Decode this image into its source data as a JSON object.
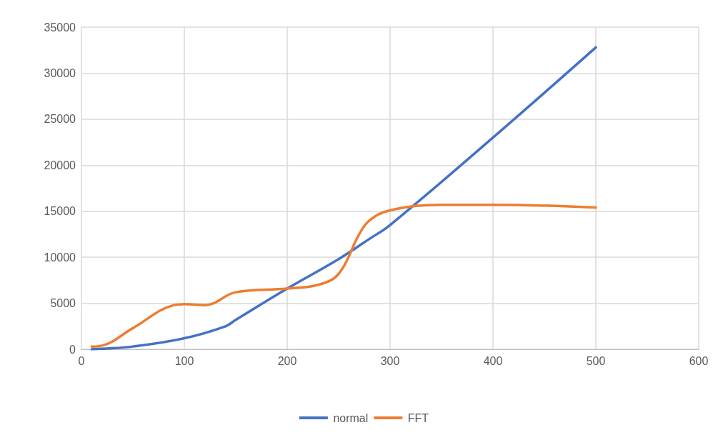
{
  "chart_data": {
    "type": "line",
    "xlim": [
      0,
      600
    ],
    "xticks": [
      0,
      100,
      200,
      300,
      400,
      500,
      600
    ],
    "ylim": [
      0,
      35000
    ],
    "yticks": [
      0,
      5000,
      10000,
      15000,
      20000,
      25000,
      30000,
      35000
    ],
    "grid": true,
    "legend": "bottom",
    "marker": "none",
    "line_style": "solid",
    "series": [
      {
        "name": "normal",
        "color": "#4472c4",
        "x": [
          10,
          20,
          50,
          100,
          140,
          150,
          200,
          250,
          280,
          300,
          400,
          500
        ],
        "values": [
          0,
          50,
          300,
          1200,
          2500,
          3200,
          6600,
          9800,
          12000,
          13500,
          23000,
          32800
        ]
      },
      {
        "name": "FFT",
        "color": "#ed7d31",
        "x": [
          10,
          20,
          50,
          90,
          100,
          120,
          150,
          200,
          230,
          250,
          270,
          280,
          300,
          350,
          400,
          500
        ],
        "values": [
          300,
          400,
          2300,
          4800,
          4900,
          4800,
          6200,
          6600,
          7000,
          8200,
          12500,
          14000,
          15100,
          15700,
          15700,
          15400
        ]
      }
    ]
  }
}
